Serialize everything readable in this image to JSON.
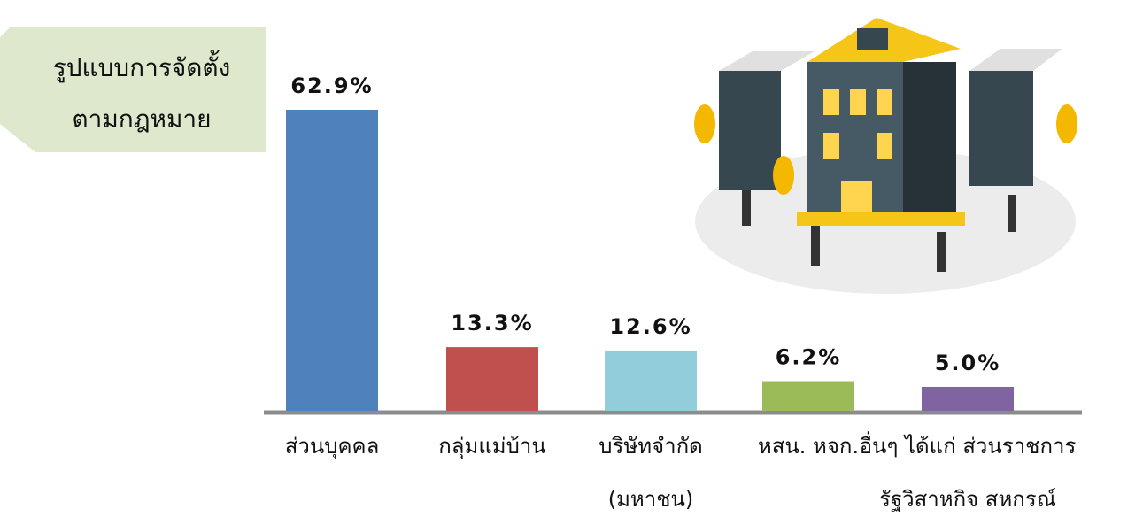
{
  "chart_data": {
    "type": "bar",
    "title": "รูปแบบการจัดตั้ง\nตามกฎหมาย",
    "categories": [
      "ส่วนบุคคล",
      "กลุ่มแม่บ้าน",
      "บริษัทจำกัด\n(มหาชน)",
      "หสน. หจก.",
      "อื่นๆ ได้แก่ ส่วนราชการ\nรัฐวิสาหกิจ สหกรณ์"
    ],
    "values": [
      62.9,
      13.3,
      12.6,
      6.2,
      5.0
    ],
    "value_labels": [
      "62.9%",
      "13.3%",
      "12.6%",
      "6.2%",
      "5.0%"
    ],
    "colors": [
      "#4f81bd",
      "#c0504d",
      "#92cddc",
      "#9bbb59",
      "#8064a2"
    ]
  }
}
